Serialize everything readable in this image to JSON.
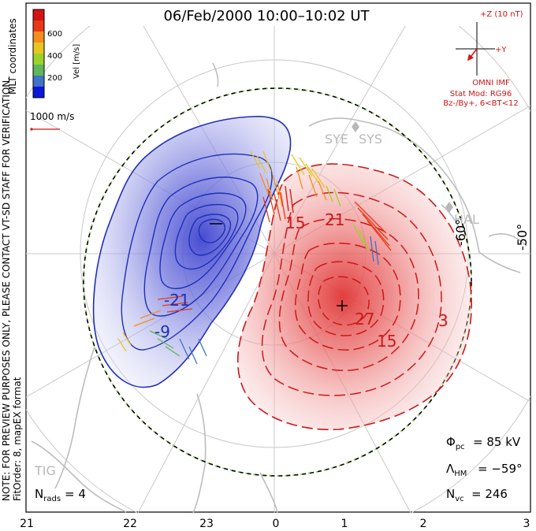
{
  "chart_data": {
    "type": "polar-convection-map",
    "title": "06/Feb/2000 10:00–10:02 UT",
    "coordinates_label": "MLT coordinates",
    "colorbar": {
      "label": "Vel [m/s]",
      "ticks": [
        "200",
        "400",
        "600"
      ],
      "colors": [
        "#0a17d8",
        "#3f72c8",
        "#5fb65a",
        "#9bd22a",
        "#e7c61f",
        "#f58d1c",
        "#e63918",
        "#d41414"
      ]
    },
    "reference_vector": "1000 m/s",
    "imf": {
      "z_label": "+Z (10 nT)",
      "y_label": "+Y",
      "source": "OMNI IMF",
      "stat_mod": "Stat Mod: RG96",
      "condition": "Bz-/By+, 6<BT<12"
    },
    "latitude_labels": [
      "-60°",
      "-50°"
    ],
    "mlt_labels": [
      "21",
      "22",
      "23",
      "0",
      "1",
      "2",
      "3"
    ],
    "station_labels": [
      "SYE",
      "SYS",
      "HAL",
      "TIG"
    ],
    "contour_labels": [
      "-21",
      "-9",
      "15",
      "21",
      "27",
      "15",
      "3"
    ],
    "stats": {
      "phi_pc": "= 85 kV",
      "lambda_hm": "= −59°",
      "n_vc": "= 246",
      "n_rads": "= 4"
    },
    "note": "NOTE: FOR PREVIEW PURPOSES ONLY, PLEASE CONTACT VT-SD STAFF FOR VERIFICATION.",
    "fit_order": "FitOrder: 8, mapEX format",
    "colors": {
      "negative_cell": "#4f55d6",
      "positive_cell": "#e24848",
      "neg_contour": "#1f2fb8",
      "pos_contour": "#cc1818",
      "title_red": "#d41414",
      "grid": "#c8c8c8"
    }
  }
}
